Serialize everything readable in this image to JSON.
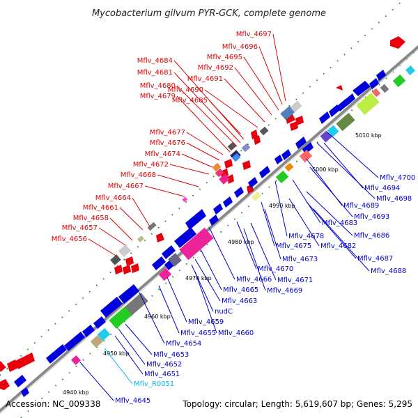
{
  "title": "Mycobacterium gilvum PYR-GCK, complete genome",
  "footer": {
    "accession": "Accession: NC_009338",
    "summary": "Topology: circular; Length: 5,619,607 bp; Genes: 5,295"
  },
  "colors": {
    "forward": "#e8000b",
    "reverse": "#0000dd",
    "rna": "#00bbee",
    "axis": "#888888",
    "dots": "#228822",
    "labelForward": "#dd0000",
    "labelReverse": "#0000cc",
    "labelRna": "#00bbee"
  },
  "scale": [
    "4940 kbp",
    "4950 kbp",
    "4960 kbp",
    "4970 kbp",
    "4980 kbp",
    "4990 kbp",
    "5000 kbp",
    "5010 kbp"
  ],
  "top_labels": [
    "Mflv_4697",
    "Mflv_4696",
    "Mflv_4695",
    "Mflv_4692",
    "Mflv_4691",
    "Mflv_4690",
    "Mflv_4684",
    "Mflv_4681",
    "Mflv_4680",
    "Mflv_4679",
    "Mflv_4685",
    "Mflv_4677",
    "Mflv_4676",
    "Mflv_4674",
    "Mflv_4672",
    "Mflv_4668",
    "Mflv_4667",
    "Mflv_4664",
    "Mflv_4661",
    "Mflv_4658",
    "Mflv_4657",
    "Mflv_4656"
  ],
  "bottom_labels": [
    "Mflv_4700",
    "Mflv_4694",
    "Mflv_4698",
    "Mflv_4689",
    "Mflv_4693",
    "Mflv_4683",
    "Mflv_4686",
    "Mflv_4678",
    "Mflv_4682",
    "Mflv_4675",
    "Mflv_4687",
    "Mflv_4673",
    "Mflv_4688",
    "Mflv_4670",
    "Mflv_4671",
    "Mflv_4666",
    "Mflv_4669",
    "Mflv_4665",
    "Mflv_4663",
    "nudC",
    "Mflv_4659",
    "Mflv_4660",
    "Mflv_4655",
    "Mflv_4654",
    "Mflv_4653",
    "Mflv_4652",
    "Mflv_4651",
    "Mflv_R0051",
    "Mflv_4645"
  ]
}
